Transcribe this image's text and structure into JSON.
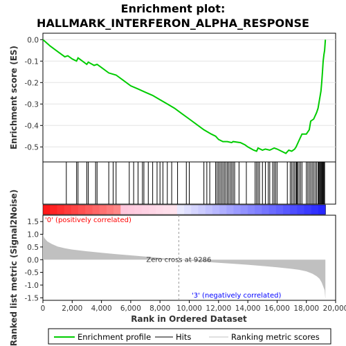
{
  "chart_data": {
    "type": "line",
    "title_line1": "Enrichment plot:",
    "title_line2": "HALLMARK_INTERFERON_ALPHA_RESPONSE",
    "es_panel": {
      "ylabel": "Enrichment score (ES)",
      "ylim": [
        -0.57,
        0.03
      ],
      "yticks": [
        0.0,
        -0.1,
        -0.2,
        -0.3,
        -0.4,
        -0.5
      ],
      "ytick_labels": [
        "0.0",
        "-0.1",
        "-0.2",
        "-0.3",
        "-0.4",
        "-0.5"
      ],
      "line_color": "#00cc00",
      "x": [
        0,
        500,
        1000,
        1500,
        1700,
        2000,
        2300,
        2400,
        2700,
        3000,
        3100,
        3500,
        3700,
        4000,
        4500,
        5000,
        5500,
        6000,
        6500,
        7000,
        7500,
        8000,
        8500,
        9000,
        9500,
        10000,
        10500,
        11000,
        11500,
        11800,
        12000,
        12300,
        12600,
        12900,
        13000,
        13500,
        13800,
        14000,
        14400,
        14600,
        14700,
        15000,
        15200,
        15500,
        15800,
        16000,
        16300,
        16600,
        16800,
        17000,
        17200,
        17300,
        17500,
        17700,
        18000,
        18200,
        18300,
        18500,
        18700,
        18800,
        18900,
        19000,
        19050,
        19100,
        19150,
        19200,
        19250,
        19300
      ],
      "es": [
        0.0,
        -0.03,
        -0.055,
        -0.08,
        -0.075,
        -0.09,
        -0.1,
        -0.085,
        -0.1,
        -0.115,
        -0.105,
        -0.12,
        -0.115,
        -0.13,
        -0.155,
        -0.165,
        -0.19,
        -0.215,
        -0.23,
        -0.245,
        -0.26,
        -0.28,
        -0.3,
        -0.32,
        -0.345,
        -0.37,
        -0.395,
        -0.42,
        -0.44,
        -0.45,
        -0.465,
        -0.475,
        -0.475,
        -0.48,
        -0.475,
        -0.48,
        -0.49,
        -0.5,
        -0.515,
        -0.52,
        -0.505,
        -0.515,
        -0.51,
        -0.515,
        -0.505,
        -0.51,
        -0.52,
        -0.53,
        -0.515,
        -0.52,
        -0.51,
        -0.5,
        -0.47,
        -0.44,
        -0.44,
        -0.42,
        -0.38,
        -0.37,
        -0.34,
        -0.32,
        -0.28,
        -0.24,
        -0.2,
        -0.15,
        -0.1,
        -0.07,
        -0.05,
        0.0
      ]
    },
    "hits_panel": {
      "hits": [
        1600,
        2300,
        2400,
        3000,
        3100,
        3600,
        3700,
        4500,
        4800,
        5000,
        5900,
        6200,
        6500,
        6800,
        6900,
        7200,
        7500,
        7800,
        8000,
        8200,
        8500,
        8800,
        9200,
        9800,
        10000,
        11000,
        11200,
        11400,
        11800,
        11900,
        12000,
        12100,
        12200,
        12300,
        12400,
        12500,
        12600,
        12700,
        12800,
        12900,
        13000,
        13100,
        13400,
        13900,
        14500,
        14600,
        14700,
        14800,
        15000,
        15200,
        15400,
        15500,
        15700,
        15800,
        15900,
        16000,
        16700,
        16900,
        17000,
        17100,
        17200,
        17300,
        17350,
        17400,
        17500,
        17600,
        17700,
        18000,
        18100,
        18200,
        18300,
        18400,
        18500,
        18600,
        18700,
        18800,
        18850,
        18900,
        18950,
        19000,
        19050,
        19100,
        19150,
        19200,
        19250
      ]
    },
    "metric_panel": {
      "ylabel": "Ranked list metric (Signal2Noise)",
      "ylim": [
        -1.6,
        1.75
      ],
      "yticks": [
        1.5,
        1.0,
        0.5,
        0.0,
        -0.5,
        -1.0,
        -1.5
      ],
      "ytick_labels": [
        "1.5",
        "1.0",
        "0.5",
        "0.0",
        "-0.5",
        "-1.0",
        "-1.5"
      ],
      "fill_color": "#c0c0c0",
      "x": [
        0,
        100,
        300,
        600,
        1000,
        1500,
        2000,
        3000,
        4000,
        5000,
        6000,
        7000,
        8000,
        9000,
        9286,
        10000,
        11000,
        12000,
        13000,
        14000,
        15000,
        16000,
        17000,
        17500,
        18000,
        18400,
        18700,
        18900,
        19050,
        19150,
        19250,
        19300
      ],
      "values": [
        1.0,
        0.85,
        0.72,
        0.62,
        0.52,
        0.45,
        0.4,
        0.33,
        0.27,
        0.22,
        0.17,
        0.12,
        0.07,
        0.02,
        0.0,
        -0.04,
        -0.08,
        -0.12,
        -0.16,
        -0.2,
        -0.25,
        -0.3,
        -0.36,
        -0.4,
        -0.46,
        -0.55,
        -0.65,
        -0.75,
        -0.9,
        -1.05,
        -1.2,
        -1.55
      ],
      "zero_cross_label": "Zero cross at 9286",
      "zero_cross": 9286,
      "pos_label": "'0' (positively correlated)",
      "neg_label": "'3' (negatively correlated)",
      "pos_color": "#ff0000",
      "neg_color": "#0000ff"
    },
    "xaxis": {
      "xlabel": "Rank in Ordered Dataset",
      "xlim": [
        0,
        20000
      ],
      "n_genes": 19300,
      "xticks": [
        0,
        2000,
        4000,
        6000,
        8000,
        10000,
        12000,
        14000,
        16000,
        18000,
        20000
      ],
      "xtick_labels": [
        "0",
        "2,000",
        "4,000",
        "6,000",
        "8,000",
        "10,000",
        "12,000",
        "14,000",
        "16,000",
        "18,000",
        "20,000"
      ]
    },
    "legend": [
      {
        "name": "Enrichment profile",
        "color": "#00cc00"
      },
      {
        "name": "Hits",
        "color": "#000000"
      },
      {
        "name": "Ranking metric scores",
        "color": "#c0c0c0"
      }
    ]
  }
}
